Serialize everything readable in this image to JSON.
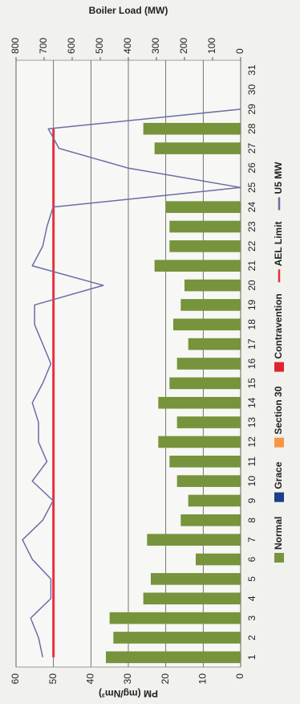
{
  "chart_data": {
    "type": "bar",
    "title_y": "PM (mg/Nm³)",
    "title_y2": "Boiler Load (MW)",
    "categories": [
      "1",
      "2",
      "3",
      "4",
      "5",
      "6",
      "7",
      "8",
      "9",
      "10",
      "11",
      "12",
      "13",
      "14",
      "15",
      "16",
      "17",
      "18",
      "19",
      "20",
      "21",
      "22",
      "23",
      "24",
      "25",
      "26",
      "27",
      "28",
      "29",
      "30",
      "31"
    ],
    "series": [
      {
        "name": "Normal",
        "mark": "bar",
        "color": "#77933c",
        "values": [
          36,
          34,
          35,
          26,
          24,
          12,
          25,
          16,
          14,
          17,
          19,
          22,
          17,
          22,
          19,
          17,
          14,
          18,
          16,
          15,
          23,
          19,
          19,
          20,
          null,
          null,
          23,
          26,
          null,
          null,
          null
        ]
      },
      {
        "name": "Grace",
        "mark": "bar",
        "color": "#1f3e8a",
        "values": [
          null,
          null,
          null,
          null,
          null,
          null,
          null,
          null,
          null,
          null,
          null,
          null,
          null,
          null,
          null,
          null,
          null,
          null,
          null,
          null,
          null,
          null,
          null,
          null,
          null,
          null,
          null,
          null,
          null,
          null,
          null
        ]
      },
      {
        "name": "Section 30",
        "mark": "bar",
        "color": "#f79646",
        "values": [
          null,
          null,
          null,
          null,
          null,
          null,
          null,
          null,
          null,
          null,
          null,
          null,
          null,
          null,
          null,
          null,
          null,
          null,
          null,
          null,
          null,
          null,
          null,
          null,
          null,
          null,
          null,
          null,
          null,
          null,
          null
        ]
      },
      {
        "name": "Contravention",
        "mark": "bar",
        "color": "#e0242c",
        "values": [
          null,
          null,
          null,
          null,
          null,
          null,
          null,
          null,
          null,
          null,
          null,
          null,
          null,
          null,
          null,
          null,
          null,
          null,
          null,
          null,
          null,
          null,
          null,
          null,
          null,
          null,
          null,
          null,
          null,
          null,
          null
        ]
      },
      {
        "name": "AEL Limit",
        "mark": "line",
        "color": "#e8303a",
        "width": 3,
        "values": [
          50,
          50,
          50,
          50,
          50,
          50,
          50,
          50,
          50,
          50,
          50,
          50,
          50,
          50,
          50,
          50,
          50,
          50,
          50,
          50,
          50,
          50,
          50,
          50,
          50,
          50,
          50,
          50,
          null,
          null,
          null
        ]
      },
      {
        "name": "U5 MW",
        "mark": "line",
        "axis": "y2",
        "color": "#6a6ea6",
        "width": 1.5,
        "values": [
          705,
          720,
          748,
          676,
          676,
          742,
          777,
          705,
          668,
          742,
          690,
          720,
          720,
          742,
          705,
          676,
          705,
          734,
          734,
          489,
          742,
          705,
          690,
          668,
          0,
          403,
          647,
          685,
          0,
          null,
          null
        ]
      }
    ],
    "ylim": [
      0,
      60
    ],
    "yticks": [
      0,
      10,
      20,
      30,
      40,
      50,
      60
    ],
    "y2lim": [
      0,
      800
    ],
    "y2ticks": [
      0,
      100,
      200,
      300,
      400,
      500,
      600,
      700,
      800
    ],
    "grid": true
  }
}
